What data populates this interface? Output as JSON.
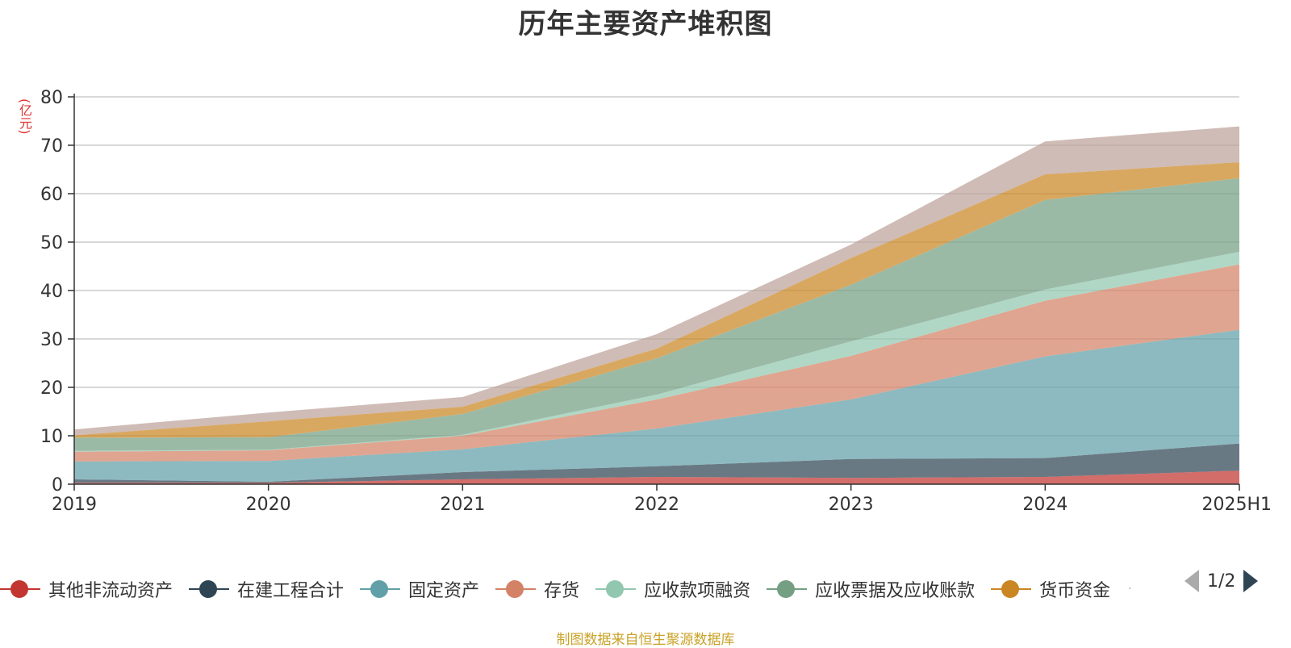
{
  "title": "历年主要资产堆积图",
  "unit_label": "(亿元)",
  "source_note": "制图数据来自恒生聚源数据库",
  "legend": {
    "pager_text": "1/2",
    "more_dot": "·"
  },
  "chart_data": {
    "type": "area",
    "stacked": true,
    "title": "历年主要资产堆积图",
    "ylabel": "(亿元)",
    "xlabel": "",
    "categories": [
      "2019",
      "2020",
      "2021",
      "2022",
      "2023",
      "2024",
      "2025H1"
    ],
    "ylim": [
      0,
      80
    ],
    "yticks": [
      0,
      10,
      20,
      30,
      40,
      50,
      60,
      70,
      80
    ],
    "grid": true,
    "legend_position": "bottom",
    "series": [
      {
        "name": "其他非流动资产",
        "color": "#c23531",
        "values": [
          0.3,
          0.3,
          1.0,
          1.5,
          1.3,
          1.5,
          2.8
        ]
      },
      {
        "name": "在建工程合计",
        "color": "#2f4554",
        "values": [
          0.7,
          0.2,
          1.5,
          2.2,
          3.9,
          3.9,
          5.6
        ]
      },
      {
        "name": "固定资产",
        "color": "#61a0a8",
        "values": [
          3.7,
          4.3,
          4.7,
          7.8,
          12.3,
          21.0,
          23.5
        ]
      },
      {
        "name": "存货",
        "color": "#d48265",
        "values": [
          2.0,
          2.2,
          2.8,
          6.0,
          9.0,
          11.5,
          13.5
        ]
      },
      {
        "name": "应收款项融资",
        "color": "#91c7ae",
        "values": [
          0.2,
          0.1,
          0.2,
          1.0,
          3.0,
          2.3,
          2.6
        ]
      },
      {
        "name": "应收票据及应收账款",
        "color": "#749f83",
        "values": [
          2.7,
          2.6,
          4.3,
          7.5,
          11.7,
          18.5,
          15.2
        ]
      },
      {
        "name": "货币资金",
        "color": "#ca8622",
        "values": [
          0.5,
          3.3,
          1.5,
          2.0,
          5.5,
          5.3,
          3.3
        ]
      },
      {
        "name": "",
        "color": "#bda29a",
        "values": [
          1.2,
          1.8,
          2.0,
          3.0,
          2.8,
          6.8,
          7.4
        ]
      }
    ]
  }
}
